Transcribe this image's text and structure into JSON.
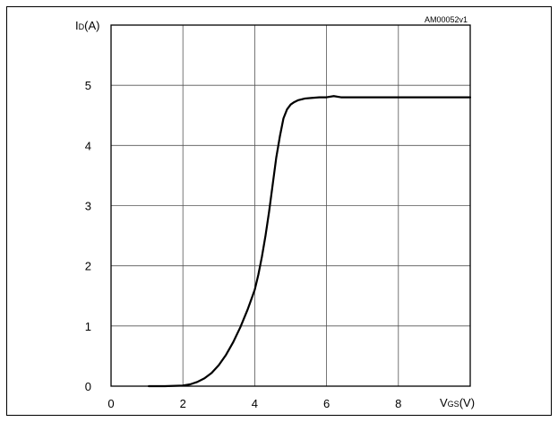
{
  "chart_data": {
    "type": "line",
    "title": "",
    "figure_id": "AM00052v1",
    "xlabel": {
      "main": "V",
      "sub": "GS",
      "unit": "(V)"
    },
    "ylabel": {
      "main": "I",
      "sub": "D",
      "unit": "(A)"
    },
    "xlim": [
      0,
      10
    ],
    "ylim": [
      0,
      6
    ],
    "xticks": [
      0,
      2,
      4,
      6,
      8
    ],
    "yticks": [
      0,
      1,
      2,
      3,
      4,
      5
    ],
    "grid": true,
    "series": [
      {
        "color": "#000000",
        "x": [
          1.05,
          1.5,
          2.0,
          2.2,
          2.4,
          2.6,
          2.8,
          3.0,
          3.2,
          3.4,
          3.6,
          3.8,
          4.0,
          4.1,
          4.2,
          4.3,
          4.4,
          4.5,
          4.6,
          4.7,
          4.8,
          4.9,
          5.0,
          5.1,
          5.2,
          5.4,
          5.6,
          5.8,
          6.0,
          6.2,
          6.4,
          6.6,
          7.0,
          8.0,
          9.0,
          10.0
        ],
        "y": [
          0.0,
          0.0,
          0.01,
          0.03,
          0.07,
          0.13,
          0.22,
          0.35,
          0.52,
          0.73,
          0.98,
          1.27,
          1.6,
          1.85,
          2.15,
          2.5,
          2.9,
          3.35,
          3.8,
          4.15,
          4.45,
          4.6,
          4.68,
          4.72,
          4.75,
          4.78,
          4.79,
          4.8,
          4.8,
          4.82,
          4.8,
          4.8,
          4.8,
          4.8,
          4.8,
          4.8
        ]
      }
    ]
  }
}
